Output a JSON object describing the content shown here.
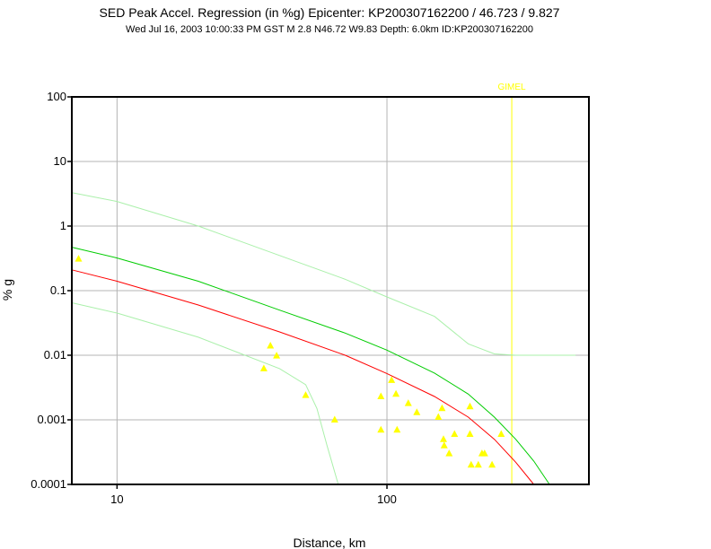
{
  "chart_data": {
    "type": "scatter",
    "title": "SED Peak Accel. Regression (in %g) Epicenter: KP200307162200 / 46.723 / 9.827",
    "subtitle": "Wed Jul 16, 2003 10:00:33 PM GST    M 2.8    N46.72 W9.83    Depth: 6.0km    ID:KP200307162200",
    "xlabel": "Distance, km",
    "ylabel": "% g",
    "x_scale": "log",
    "y_scale": "log",
    "xlim": [
      6.8,
      560
    ],
    "ylim": [
      0.0001,
      100
    ],
    "grid": true,
    "x_ticks": [
      {
        "value": 10,
        "label": "10"
      },
      {
        "value": 100,
        "label": "100"
      }
    ],
    "y_ticks": [
      {
        "value": 100,
        "label": "100"
      },
      {
        "value": 10,
        "label": "10"
      },
      {
        "value": 1,
        "label": "1"
      },
      {
        "value": 0.1,
        "label": "0.1"
      },
      {
        "value": 0.01,
        "label": "0.01"
      },
      {
        "value": 0.001,
        "label": "0.001"
      },
      {
        "value": 0.0001,
        "label": "0.0001"
      }
    ],
    "annotations": [
      {
        "text": "GIMEL",
        "x": 290,
        "color": "#ffff00"
      }
    ],
    "series": [
      {
        "kind": "line",
        "color": "#ff0000",
        "points": [
          [
            6.8,
            0.21
          ],
          [
            10,
            0.14
          ],
          [
            20,
            0.06
          ],
          [
            40,
            0.023
          ],
          [
            70,
            0.01
          ],
          [
            100,
            0.0052
          ],
          [
            150,
            0.0023
          ],
          [
            200,
            0.0011
          ],
          [
            250,
            0.0005
          ],
          [
            300,
            0.00022
          ],
          [
            350,
            0.0001
          ]
        ]
      },
      {
        "kind": "line",
        "color": "#00cc00",
        "points": [
          [
            6.8,
            0.47
          ],
          [
            10,
            0.32
          ],
          [
            20,
            0.14
          ],
          [
            40,
            0.05
          ],
          [
            70,
            0.022
          ],
          [
            100,
            0.012
          ],
          [
            150,
            0.0053
          ],
          [
            200,
            0.0025
          ],
          [
            250,
            0.0011
          ],
          [
            300,
            0.0005
          ],
          [
            350,
            0.00023
          ],
          [
            400,
            0.0001
          ]
        ]
      },
      {
        "kind": "line",
        "color": "#aaf0aa",
        "points": [
          [
            6.8,
            3.3
          ],
          [
            10,
            2.4
          ],
          [
            20,
            1.0
          ],
          [
            40,
            0.35
          ],
          [
            70,
            0.15
          ],
          [
            100,
            0.08
          ],
          [
            150,
            0.04
          ],
          [
            200,
            0.015
          ],
          [
            250,
            0.0105
          ],
          [
            300,
            0.01
          ],
          [
            500,
            0.01
          ]
        ]
      },
      {
        "kind": "line",
        "color": "#aaf0aa",
        "points": [
          [
            6.8,
            0.065
          ],
          [
            10,
            0.045
          ],
          [
            20,
            0.019
          ],
          [
            40,
            0.0062
          ],
          [
            50,
            0.0035
          ],
          [
            55,
            0.0015
          ],
          [
            60,
            0.0004
          ],
          [
            66,
            0.0001
          ]
        ]
      },
      {
        "kind": "points",
        "color": "#ffff00",
        "marker": "triangle",
        "points": [
          [
            7.2,
            0.31
          ],
          [
            35,
            0.0062
          ],
          [
            37,
            0.014
          ],
          [
            39,
            0.0098
          ],
          [
            50,
            0.0024
          ],
          [
            64,
            0.001
          ],
          [
            95,
            0.0023
          ],
          [
            95,
            0.0007
          ],
          [
            104,
            0.0041
          ],
          [
            108,
            0.0025
          ],
          [
            109,
            0.0007
          ],
          [
            120,
            0.0018
          ],
          [
            129,
            0.0013
          ],
          [
            155,
            0.0011
          ],
          [
            160,
            0.0015
          ],
          [
            162,
            0.0005
          ],
          [
            163,
            0.0004
          ],
          [
            170,
            0.0003
          ],
          [
            178,
            0.0006
          ],
          [
            203,
            0.0016
          ],
          [
            203,
            0.0006
          ],
          [
            205,
            0.0002
          ],
          [
            218,
            0.0002
          ],
          [
            225,
            0.0003
          ],
          [
            230,
            0.0003
          ],
          [
            245,
            0.0002
          ],
          [
            265,
            0.0006
          ]
        ]
      }
    ]
  }
}
